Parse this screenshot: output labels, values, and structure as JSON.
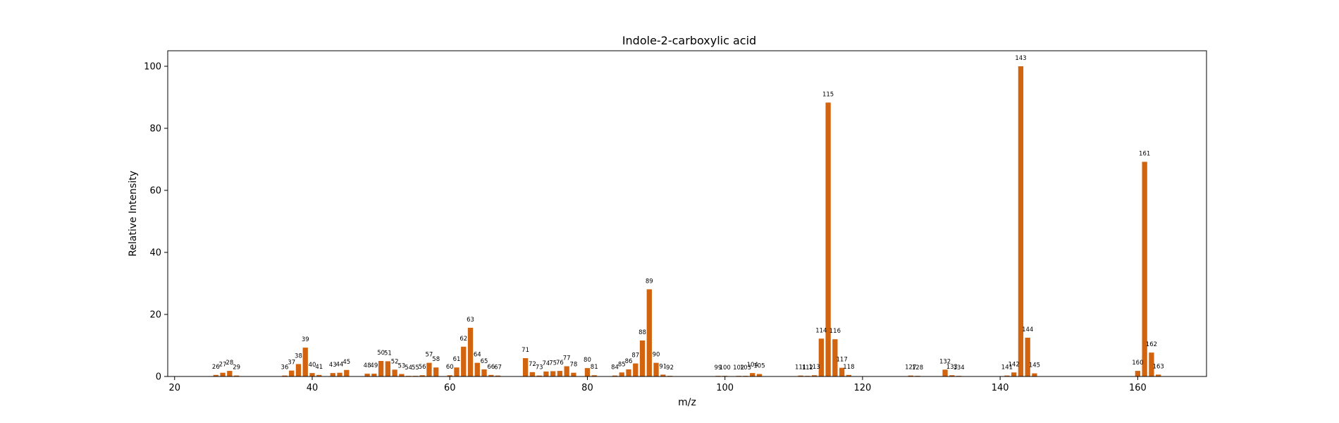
{
  "chart_data": {
    "type": "bar",
    "title": "Indole-2-carboxylic acid",
    "xlabel": "m/z",
    "ylabel": "Relative Intensity",
    "xlim": [
      19,
      170
    ],
    "ylim": [
      0,
      105
    ],
    "xticks": [
      20,
      40,
      60,
      80,
      100,
      120,
      140,
      160
    ],
    "yticks": [
      0,
      20,
      40,
      60,
      80,
      100
    ],
    "bar_color": "#d2640f",
    "grid": false,
    "peaks": [
      {
        "x": 26,
        "y": 0.5
      },
      {
        "x": 27,
        "y": 1.2
      },
      {
        "x": 28,
        "y": 1.8
      },
      {
        "x": 29,
        "y": 0.3
      },
      {
        "x": 36,
        "y": 0.3
      },
      {
        "x": 37,
        "y": 1.9
      },
      {
        "x": 38,
        "y": 4.0
      },
      {
        "x": 39,
        "y": 9.3
      },
      {
        "x": 40,
        "y": 1.1
      },
      {
        "x": 41,
        "y": 0.5
      },
      {
        "x": 43,
        "y": 1.1
      },
      {
        "x": 44,
        "y": 1.2
      },
      {
        "x": 45,
        "y": 2.1
      },
      {
        "x": 48,
        "y": 0.9
      },
      {
        "x": 49,
        "y": 0.9
      },
      {
        "x": 50,
        "y": 5.0
      },
      {
        "x": 51,
        "y": 4.9
      },
      {
        "x": 52,
        "y": 2.2
      },
      {
        "x": 53,
        "y": 0.8
      },
      {
        "x": 54,
        "y": 0.2
      },
      {
        "x": 55,
        "y": 0.2
      },
      {
        "x": 56,
        "y": 0.4
      },
      {
        "x": 57,
        "y": 4.4
      },
      {
        "x": 58,
        "y": 2.9
      },
      {
        "x": 60,
        "y": 0.4
      },
      {
        "x": 61,
        "y": 2.9
      },
      {
        "x": 62,
        "y": 9.6
      },
      {
        "x": 63,
        "y": 15.7
      },
      {
        "x": 64,
        "y": 4.4
      },
      {
        "x": 65,
        "y": 2.3
      },
      {
        "x": 66,
        "y": 0.5
      },
      {
        "x": 67,
        "y": 0.3
      },
      {
        "x": 71,
        "y": 5.9
      },
      {
        "x": 72,
        "y": 1.4
      },
      {
        "x": 73,
        "y": 0.3
      },
      {
        "x": 74,
        "y": 1.6
      },
      {
        "x": 75,
        "y": 1.7
      },
      {
        "x": 76,
        "y": 1.8
      },
      {
        "x": 77,
        "y": 3.3
      },
      {
        "x": 78,
        "y": 1.2
      },
      {
        "x": 80,
        "y": 2.7
      },
      {
        "x": 81,
        "y": 0.4
      },
      {
        "x": 84,
        "y": 0.3
      },
      {
        "x": 85,
        "y": 1.3
      },
      {
        "x": 86,
        "y": 2.3
      },
      {
        "x": 87,
        "y": 4.2
      },
      {
        "x": 88,
        "y": 11.6
      },
      {
        "x": 89,
        "y": 28.1
      },
      {
        "x": 90,
        "y": 4.4
      },
      {
        "x": 91,
        "y": 0.6
      },
      {
        "x": 92,
        "y": 0.2
      },
      {
        "x": 99,
        "y": 0.2
      },
      {
        "x": 100,
        "y": 0.2
      },
      {
        "x": 102,
        "y": 0.2
      },
      {
        "x": 103,
        "y": 0.2
      },
      {
        "x": 104,
        "y": 1.1
      },
      {
        "x": 105,
        "y": 0.8
      },
      {
        "x": 111,
        "y": 0.3
      },
      {
        "x": 112,
        "y": 0.2
      },
      {
        "x": 113,
        "y": 0.4
      },
      {
        "x": 114,
        "y": 12.2
      },
      {
        "x": 115,
        "y": 88.3
      },
      {
        "x": 116,
        "y": 12.0
      },
      {
        "x": 117,
        "y": 2.8
      },
      {
        "x": 118,
        "y": 0.5
      },
      {
        "x": 127,
        "y": 0.3
      },
      {
        "x": 128,
        "y": 0.2
      },
      {
        "x": 132,
        "y": 2.2
      },
      {
        "x": 133,
        "y": 0.4
      },
      {
        "x": 134,
        "y": 0.2
      },
      {
        "x": 141,
        "y": 0.3
      },
      {
        "x": 142,
        "y": 1.3
      },
      {
        "x": 143,
        "y": 100.0
      },
      {
        "x": 144,
        "y": 12.5
      },
      {
        "x": 145,
        "y": 1.0
      },
      {
        "x": 160,
        "y": 1.8
      },
      {
        "x": 161,
        "y": 69.2
      },
      {
        "x": 162,
        "y": 7.7
      },
      {
        "x": 163,
        "y": 0.6
      }
    ]
  }
}
